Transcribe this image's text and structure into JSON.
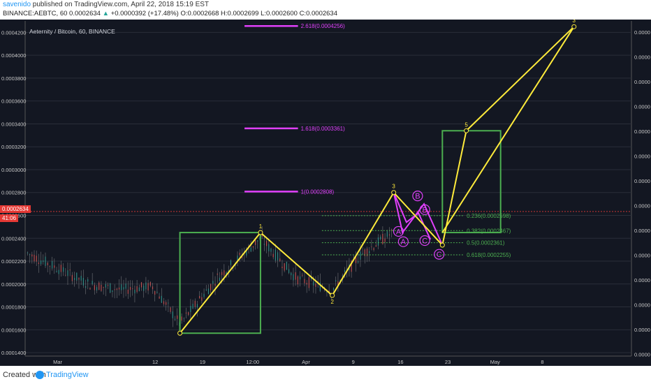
{
  "header": {
    "user": "savenido",
    "published": " published on TradingView.com, April 22, 2018 15:19 EST",
    "symbol": "BINANCE:AEBTC, 60",
    "last": "0.0002634",
    "change": "+0.0000392 (+17.48%)",
    "ohlc": "O:0.0002668 H:0.0002699 L:0.0002600 C:0.0002634"
  },
  "chart_title": "Aeternity / Bitcoin, 60, BINANCE",
  "current_price_label": "0.0002634",
  "current_price_sub": "41:06",
  "footer": {
    "created": "Created with",
    "brand": "TradingView"
  },
  "colors": {
    "background": "#131722",
    "grid": "#2a2e39",
    "wave": "#ffeb3b",
    "correction": "#e040fb",
    "box": "#4caf50",
    "fib": "#4caf50",
    "extension": "#e040fb",
    "last_price": "#e53935"
  },
  "chart_data": {
    "type": "line",
    "x_ticks": [
      "Mar",
      "12",
      "19",
      "12:00",
      "Apr",
      "9",
      "16",
      "23",
      "May",
      "8"
    ],
    "y_ticks": [
      "0.0004200",
      "0.0004000",
      "0.0003800",
      "0.0003600",
      "0.0003400",
      "0.0003200",
      "0.0003000",
      "0.0002800",
      "0.0002600",
      "0.0002400",
      "0.0002200",
      "0.0002000",
      "0.0001800",
      "0.0001600",
      "0.0001400"
    ],
    "right_ticks": [
      "0.0000",
      "0.0000",
      "0.0000",
      "0.0000",
      "0.0000",
      "0.0000",
      "0.0000",
      "0.0000",
      "0.0000",
      "0.0000",
      "0.0000",
      "0.0000",
      "0.0000",
      "0.0000"
    ],
    "ylim": [
      0.000137,
      0.00043
    ],
    "xlim": [
      0,
      76
    ],
    "wave_points": [
      {
        "x": 19.4,
        "y": 0.000157,
        "label": ""
      },
      {
        "x": 29.5,
        "y": 0.000245,
        "label": "1"
      },
      {
        "x": 38.5,
        "y": 0.00019,
        "label": "2"
      },
      {
        "x": 46.2,
        "y": 0.00028,
        "label": "3"
      },
      {
        "x": 52.3,
        "y": 0.000234,
        "label": ""
      },
      {
        "x": 55.3,
        "y": 0.000334,
        "label": "5"
      },
      {
        "x": 68.8,
        "y": 0.000425,
        "label": "3"
      }
    ],
    "wave_extra": [
      {
        "x": 52.3,
        "y": 0.000245
      },
      {
        "x": 68.8,
        "y": 0.000425
      }
    ],
    "correction_1": [
      {
        "x": 46.2,
        "y": 0.00028
      },
      {
        "x": 47.3,
        "y": 0.000245
      },
      {
        "x": 50.0,
        "y": 0.00027
      },
      {
        "x": 52.3,
        "y": 0.000234
      }
    ],
    "correction_2": [
      {
        "x": 46.2,
        "y": 0.00028
      },
      {
        "x": 47.8,
        "y": 0.000254
      },
      {
        "x": 49.3,
        "y": 0.000262
      },
      {
        "x": 50.8,
        "y": 0.000239
      }
    ],
    "circle_labels": [
      {
        "x": 46.8,
        "y": 0.000246,
        "text": "A"
      },
      {
        "x": 47.4,
        "y": 0.000237,
        "text": "A"
      },
      {
        "x": 49.2,
        "y": 0.000277,
        "text": "B"
      },
      {
        "x": 50.1,
        "y": 0.000265,
        "text": "B"
      },
      {
        "x": 50.1,
        "y": 0.000238,
        "text": "C"
      },
      {
        "x": 51.9,
        "y": 0.000226,
        "text": "C"
      }
    ],
    "boxes": [
      {
        "x0": 19.4,
        "x1": 29.5,
        "y0": 0.000157,
        "y1": 0.000245
      },
      {
        "x0": 52.3,
        "x1": 59.6,
        "y0": 0.000245,
        "y1": 0.000334
      }
    ],
    "fib_levels": [
      {
        "y": 0.0002598,
        "label": "0.236(0.0002598)"
      },
      {
        "y": 0.0002467,
        "label": "0.382(0.0002467)"
      },
      {
        "y": 0.0002361,
        "label": "0.5(0.0002361)"
      },
      {
        "y": 0.0002255,
        "label": "0.618(0.0002255)"
      }
    ],
    "fib_x": [
      37.2,
      55.0
    ],
    "extensions": [
      {
        "y": 0.0004256,
        "label": "2.618(0.0004256)"
      },
      {
        "y": 0.0003361,
        "label": "1.618(0.0003361)"
      },
      {
        "y": 0.0002808,
        "label": "1(0.0002808)"
      }
    ],
    "ext_x": [
      27.5,
      34.2
    ],
    "last_price": 0.0002634
  }
}
